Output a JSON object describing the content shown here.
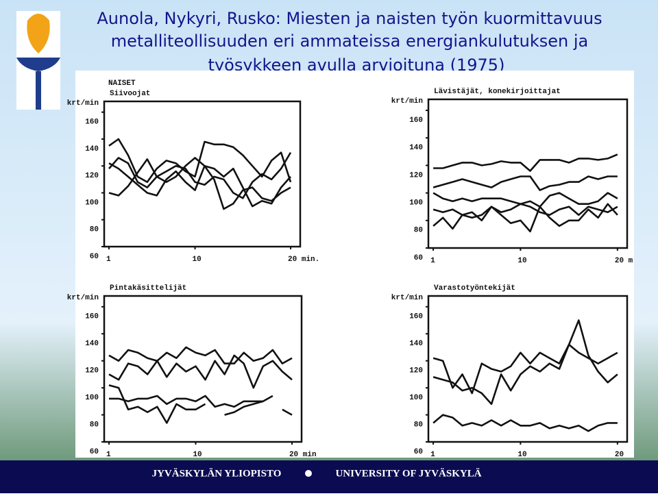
{
  "slide": {
    "title_lines": [
      "Aunola, Nykyri, Rusko: Miesten ja naisten työn kuormittavuus",
      "metalliteollisuuden eri ammateissa energiankulutuksen ja",
      "työsykkeen avulla arvioituna (1975)"
    ],
    "footer": {
      "left": "JYVÄSKYLÄN YLIOPISTO",
      "right": "UNIVERSITY OF JYVÄSKYLÄ"
    }
  },
  "chart_data": [
    {
      "type": "line",
      "supertitle": "NAISET",
      "title": "Siivoojat",
      "y_label": "krt/min",
      "color": "#111111",
      "x": [
        1,
        2,
        3,
        4,
        5,
        6,
        7,
        8,
        9,
        10,
        11,
        12,
        13,
        14,
        15,
        16,
        17,
        18,
        19,
        20
      ],
      "series": [
        {
          "values": [
            135,
            140,
            128,
            112,
            108,
            118,
            124,
            122,
            116,
            112,
            138,
            136,
            136,
            134,
            128,
            120,
            112,
            124,
            130,
            108
          ]
        },
        {
          "values": [
            100,
            98,
            105,
            115,
            125,
            112,
            108,
            112,
            120,
            126,
            120,
            110,
            88,
            92,
            102,
            104,
            96,
            94,
            100,
            104
          ]
        },
        {
          "values": [
            118,
            126,
            122,
            108,
            104,
            112,
            116,
            120,
            118,
            108,
            106,
            112,
            110,
            100,
            96,
            108,
            114,
            110,
            118,
            130
          ]
        },
        {
          "values": [
            122,
            118,
            112,
            106,
            100,
            98,
            110,
            116,
            108,
            102,
            120,
            118,
            112,
            118,
            104,
            90,
            94,
            92,
            104,
            112
          ]
        }
      ],
      "xlim": [
        0.5,
        21
      ],
      "xticks": [
        1,
        10,
        {
          "value": 20,
          "label": "20 min."
        }
      ],
      "ylim": [
        60,
        168
      ],
      "yticks": [
        60,
        80,
        100,
        120,
        140,
        160
      ]
    },
    {
      "type": "line",
      "title": "Lävistäjät, konekirjoittajat",
      "y_label": "krt/min",
      "color": "#111111",
      "x": [
        1,
        2,
        3,
        4,
        5,
        6,
        7,
        8,
        9,
        10,
        11,
        12,
        13,
        14,
        15,
        16,
        17,
        18,
        19,
        20
      ],
      "series": [
        {
          "values": [
            118,
            118,
            120,
            122,
            122,
            120,
            121,
            123,
            122,
            122,
            116,
            124,
            124,
            124,
            122,
            125,
            125,
            124,
            125,
            128
          ]
        },
        {
          "values": [
            104,
            106,
            108,
            110,
            108,
            106,
            104,
            108,
            110,
            112,
            112,
            102,
            105,
            106,
            108,
            108,
            112,
            110,
            112,
            112
          ]
        },
        {
          "values": [
            100,
            96,
            94,
            96,
            94,
            96,
            96,
            96,
            94,
            92,
            94,
            90,
            98,
            100,
            96,
            92,
            92,
            94,
            100,
            96
          ]
        },
        {
          "values": [
            88,
            86,
            88,
            84,
            82,
            84,
            90,
            86,
            88,
            92,
            90,
            86,
            84,
            88,
            90,
            84,
            90,
            88,
            86,
            90
          ]
        },
        {
          "values": [
            76,
            82,
            74,
            84,
            86,
            80,
            90,
            84,
            78,
            80,
            72,
            90,
            82,
            76,
            80,
            80,
            88,
            82,
            92,
            84
          ]
        }
      ],
      "xlim": [
        0.5,
        21
      ],
      "xticks": [
        1,
        10,
        {
          "value": 20,
          "label": "20 m"
        }
      ],
      "ylim": [
        60,
        168
      ],
      "yticks": [
        60,
        80,
        100,
        120,
        140,
        160
      ]
    },
    {
      "type": "line",
      "title": "Pintakäsittelijät",
      "y_label": "krt/min",
      "color": "#111111",
      "x": [
        1,
        2,
        3,
        4,
        5,
        6,
        7,
        8,
        9,
        10,
        11,
        12,
        13,
        14,
        15,
        16,
        17,
        18,
        19,
        20
      ],
      "series": [
        {
          "values": [
            124,
            120,
            128,
            126,
            122,
            120,
            126,
            122,
            130,
            126,
            124,
            128,
            118,
            118,
            126,
            120,
            122,
            128,
            118,
            122
          ]
        },
        {
          "values": [
            110,
            106,
            118,
            116,
            110,
            120,
            108,
            118,
            112,
            116,
            106,
            120,
            110,
            124,
            118,
            100,
            116,
            120,
            112,
            106
          ]
        },
        {
          "values": [
            92,
            92,
            90,
            92,
            92,
            94,
            88,
            92,
            92,
            90,
            94,
            86,
            88,
            86,
            90,
            90,
            90,
            null,
            84,
            80
          ]
        },
        {
          "values": [
            102,
            100,
            84,
            86,
            82,
            86,
            74,
            88,
            84,
            84,
            88,
            null,
            80,
            82,
            86,
            88,
            90,
            94,
            null,
            82
          ]
        }
      ],
      "xlim": [
        0.5,
        21
      ],
      "xticks": [
        1,
        10,
        {
          "value": 20,
          "label": "20 min"
        }
      ],
      "ylim": [
        60,
        168
      ],
      "yticks": [
        60,
        80,
        100,
        120,
        140,
        160
      ]
    },
    {
      "type": "line",
      "title": "Varastotyöntekijät",
      "y_label": "krt/min",
      "color": "#111111",
      "x": [
        1,
        2,
        3,
        4,
        5,
        6,
        7,
        8,
        9,
        10,
        11,
        12,
        13,
        14,
        15,
        16,
        17,
        18,
        19,
        20
      ],
      "series": [
        {
          "values": [
            108,
            106,
            104,
            98,
            100,
            96,
            88,
            110,
            98,
            110,
            116,
            112,
            118,
            114,
            132,
            150,
            124,
            112,
            104,
            110
          ]
        },
        {
          "values": [
            122,
            120,
            100,
            110,
            96,
            118,
            114,
            112,
            116,
            126,
            118,
            126,
            122,
            118,
            132,
            126,
            122,
            118,
            122,
            126
          ]
        },
        {
          "values": [
            74,
            80,
            78,
            72,
            74,
            72,
            76,
            72,
            76,
            72,
            72,
            74,
            70,
            72,
            70,
            72,
            68,
            72,
            74,
            74
          ]
        }
      ],
      "xlim": [
        0.5,
        21
      ],
      "xticks": [
        1,
        10,
        20
      ],
      "ylim": [
        60,
        168
      ],
      "yticks": [
        60,
        80,
        100,
        120,
        140,
        160
      ]
    }
  ]
}
